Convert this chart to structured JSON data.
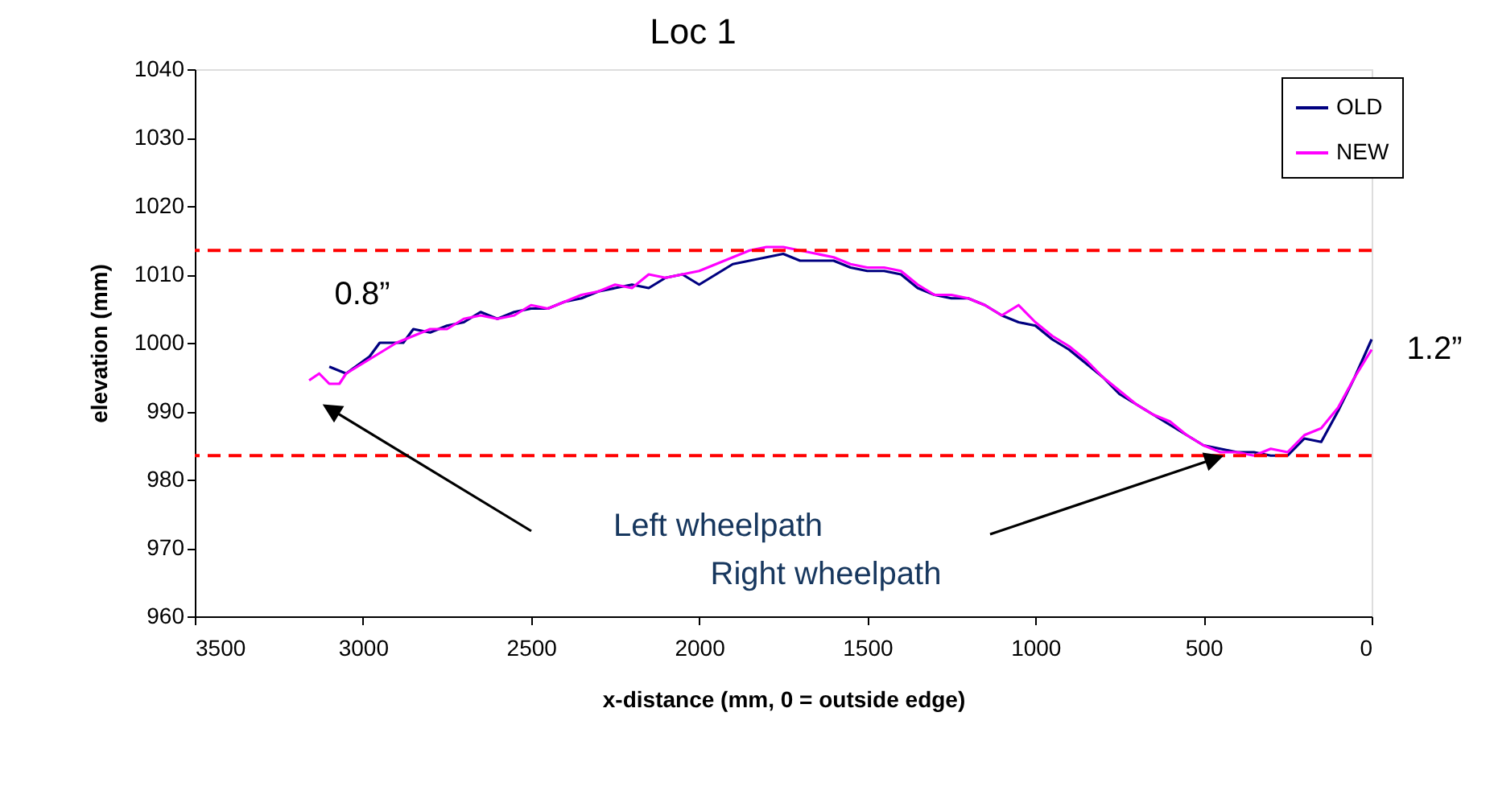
{
  "chart_data": {
    "type": "line",
    "title": "Loc 1",
    "xlabel": "x-distance (mm, 0 = outside edge)",
    "ylabel": "elevation (mm)",
    "xlim": [
      3500,
      0
    ],
    "xticks": [
      3500,
      3000,
      2500,
      2000,
      1500,
      1000,
      500,
      0
    ],
    "ylim": [
      960,
      1040
    ],
    "yticks": [
      960,
      970,
      980,
      990,
      1000,
      1010,
      1020,
      1030,
      1040
    ],
    "grid": false,
    "legend": "top right",
    "marker": "none",
    "line_style": "solid",
    "series": [
      {
        "name": "OLD",
        "color": "#000080",
        "x": [
          3100,
          3050,
          2980,
          2950,
          2880,
          2850,
          2800,
          2750,
          2700,
          2650,
          2600,
          2550,
          2500,
          2450,
          2400,
          2350,
          2300,
          2250,
          2200,
          2150,
          2100,
          2050,
          2000,
          1950,
          1900,
          1850,
          1800,
          1750,
          1700,
          1650,
          1600,
          1550,
          1500,
          1450,
          1400,
          1350,
          1300,
          1250,
          1200,
          1150,
          1100,
          1050,
          1000,
          950,
          900,
          850,
          800,
          750,
          700,
          650,
          600,
          550,
          500,
          450,
          400,
          350,
          300,
          250,
          200,
          150,
          100,
          50,
          0
        ],
        "values": [
          996.5,
          995.5,
          998,
          1000,
          1000,
          1002,
          1001.5,
          1002.5,
          1003,
          1004.5,
          1003.5,
          1004.5,
          1005,
          1005,
          1006,
          1006.5,
          1007.5,
          1008,
          1008.5,
          1008,
          1009.5,
          1010,
          1008.5,
          1010,
          1011.5,
          1012,
          1012.5,
          1013,
          1012,
          1012,
          1012,
          1011,
          1010.5,
          1010.5,
          1010,
          1008,
          1007,
          1006.5,
          1006.5,
          1005.5,
          1004,
          1003,
          1002.5,
          1000.5,
          999,
          997,
          995,
          992.5,
          991,
          989.5,
          988,
          986.5,
          985,
          984.5,
          984,
          984,
          983.5,
          983.5,
          986,
          985.5,
          990,
          995,
          1000.5
        ]
      },
      {
        "name": "NEW",
        "color": "#ff00ff",
        "x": [
          3160,
          3130,
          3100,
          3070,
          3050,
          3000,
          2950,
          2900,
          2850,
          2800,
          2750,
          2700,
          2650,
          2600,
          2550,
          2500,
          2450,
          2400,
          2350,
          2300,
          2250,
          2200,
          2150,
          2100,
          2050,
          2000,
          1950,
          1900,
          1850,
          1800,
          1750,
          1700,
          1650,
          1600,
          1550,
          1500,
          1450,
          1400,
          1350,
          1300,
          1250,
          1200,
          1150,
          1100,
          1050,
          1000,
          950,
          900,
          850,
          800,
          750,
          700,
          650,
          600,
          550,
          500,
          450,
          400,
          350,
          300,
          250,
          200,
          150,
          100,
          50,
          0
        ],
        "values": [
          994.5,
          995.5,
          994,
          994,
          995.5,
          997,
          998.5,
          1000,
          1001,
          1002,
          1002,
          1003.5,
          1004,
          1003.5,
          1004,
          1005.5,
          1005,
          1006,
          1007,
          1007.5,
          1008.5,
          1008,
          1010,
          1009.5,
          1010,
          1010.5,
          1011.5,
          1012.5,
          1013.5,
          1014,
          1014,
          1013.5,
          1013,
          1012.5,
          1011.5,
          1011,
          1011,
          1010.5,
          1008.5,
          1007,
          1007,
          1006.5,
          1005.5,
          1004,
          1005.5,
          1003,
          1001,
          999.5,
          997.5,
          995,
          993,
          991,
          989.5,
          988.5,
          986.5,
          985,
          984,
          984,
          983.5,
          984.5,
          984,
          986.5,
          987.5,
          990.5,
          995,
          999
        ]
      }
    ],
    "ref_lines": [
      {
        "axis": "y",
        "value": 1013.5,
        "color": "#ff0000",
        "line_style": "dashed"
      },
      {
        "axis": "y",
        "value": 983.5,
        "color": "#ff0000",
        "line_style": "dashed"
      }
    ],
    "annotations": [
      "0.8”",
      "1.2”",
      "Left wheelpath",
      "Right wheelpath"
    ]
  }
}
